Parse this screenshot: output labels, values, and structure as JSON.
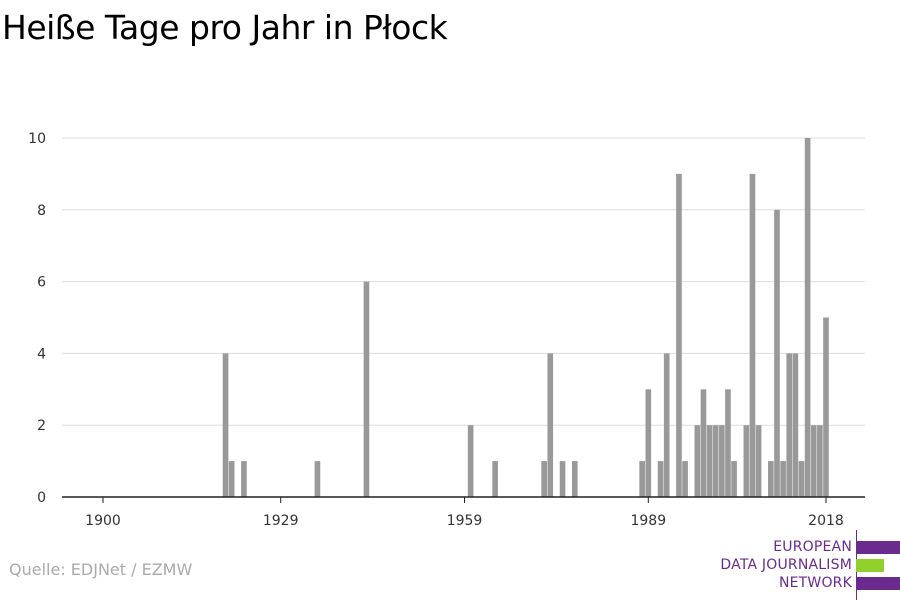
{
  "title": "Heiße Tage pro Jahr in Płock",
  "source": "Quelle: EDJNet / EZMW",
  "logo": {
    "lines": [
      "EUROPEAN",
      "DATA JOURNALISM",
      "NETWORK"
    ],
    "colors": {
      "purple": "#6a2a8e",
      "green": "#8fd12a"
    }
  },
  "chart_data": {
    "type": "bar",
    "title": "Heiße Tage pro Jahr in Płock",
    "xlabel": "",
    "ylabel": "",
    "x_ticks": [
      1900,
      1929,
      1959,
      1989,
      2018
    ],
    "y_ticks": [
      0,
      2,
      4,
      6,
      8,
      10
    ],
    "xlim": [
      1898,
      2024
    ],
    "ylim": [
      0,
      10.5
    ],
    "bar_color": "#999999",
    "grid": true,
    "x": [
      1900,
      1901,
      1902,
      1903,
      1904,
      1905,
      1906,
      1907,
      1908,
      1909,
      1910,
      1911,
      1912,
      1913,
      1914,
      1915,
      1916,
      1917,
      1918,
      1919,
      1920,
      1921,
      1922,
      1923,
      1924,
      1925,
      1926,
      1927,
      1928,
      1929,
      1930,
      1931,
      1932,
      1933,
      1934,
      1935,
      1936,
      1937,
      1938,
      1939,
      1940,
      1941,
      1942,
      1943,
      1944,
      1945,
      1946,
      1947,
      1948,
      1949,
      1950,
      1951,
      1952,
      1953,
      1954,
      1955,
      1956,
      1957,
      1958,
      1959,
      1960,
      1961,
      1962,
      1963,
      1964,
      1965,
      1966,
      1967,
      1968,
      1969,
      1970,
      1971,
      1972,
      1973,
      1974,
      1975,
      1976,
      1977,
      1978,
      1979,
      1980,
      1981,
      1982,
      1983,
      1984,
      1985,
      1986,
      1987,
      1988,
      1989,
      1990,
      1991,
      1992,
      1993,
      1994,
      1995,
      1996,
      1997,
      1998,
      1999,
      2000,
      2001,
      2002,
      2003,
      2004,
      2005,
      2006,
      2007,
      2008,
      2009,
      2010,
      2011,
      2012,
      2013,
      2014,
      2015,
      2016,
      2017,
      2018,
      2019
    ],
    "values": [
      0,
      0,
      0,
      0,
      0,
      0,
      0,
      0,
      0,
      0,
      0,
      0,
      0,
      0,
      0,
      0,
      0,
      0,
      0,
      0,
      4,
      1,
      0,
      1,
      0,
      0,
      0,
      0,
      0,
      0,
      0,
      0,
      0,
      0,
      0,
      1,
      0,
      0,
      0,
      0,
      0,
      0,
      0,
      6,
      0,
      0,
      0,
      0,
      0,
      0,
      0,
      0,
      0,
      0,
      0,
      0,
      0,
      0,
      0,
      0,
      2,
      0,
      0,
      0,
      1,
      0,
      0,
      0,
      0,
      0,
      0,
      0,
      1,
      4,
      0,
      1,
      0,
      1,
      0,
      0,
      0,
      0,
      0,
      0,
      0,
      0,
      0,
      0,
      1,
      3,
      0,
      1,
      4,
      0,
      9,
      1,
      0,
      2,
      3,
      2,
      2,
      2,
      3,
      1,
      0,
      2,
      9,
      2,
      0,
      1,
      8,
      1,
      4,
      4,
      1,
      10,
      2,
      2,
      5,
      0
    ]
  }
}
